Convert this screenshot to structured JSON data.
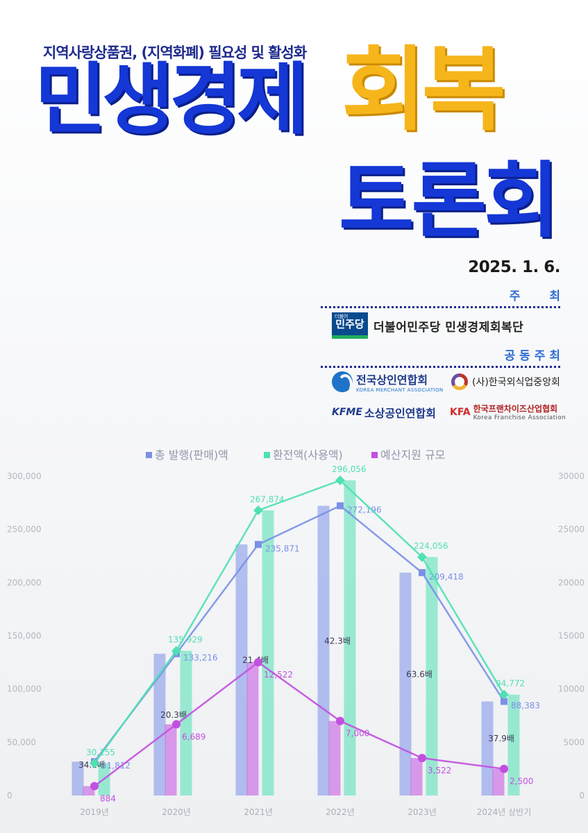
{
  "header": {
    "subtitle": "지역사랑상품권, (지역화폐) 필요성 및 활성화",
    "title_main": "민생경제",
    "title_accent": "회복",
    "title_sub": "토론회",
    "date": "2025. 1. 6."
  },
  "host": {
    "label": "주 최",
    "party_logo_text": "민주당",
    "party_logo_small": "더불어",
    "name": "더불어민주당 민생경제회복단"
  },
  "cohosts": {
    "label": "공동주최",
    "org1_name": "전국상인연합회",
    "org1_en": "KOREA MERCHANT ASSOCIATION",
    "org2_name": "(사)한국외식업중앙회",
    "org3_abbr": "KFME",
    "org3_name": "소상공인연합회",
    "org4_abbr": "KFA",
    "org4_name": "한국프랜차이즈산업협회",
    "org4_en": "Korea Franchise Association"
  },
  "colors": {
    "title_blue": "#1437d6",
    "title_yellow": "#f6b51a",
    "issued": "#7a90e8",
    "redeemed": "#4fe0b4",
    "budget": "#c24fe0"
  },
  "chart_data": {
    "type": "bar",
    "categories": [
      "2019년",
      "2020년",
      "2021년",
      "2022년",
      "2023년",
      "2024년 상반기"
    ],
    "series": [
      {
        "name": "총 발행(판매)액",
        "kind": "bar+line",
        "axis": "left",
        "values": [
          31812,
          133216,
          235871,
          272196,
          209418,
          88383
        ],
        "labels": [
          "31,812",
          "133,216",
          "235,871",
          "272,196",
          "209,418",
          "88,383"
        ]
      },
      {
        "name": "환전액(사용액)",
        "kind": "bar+line",
        "axis": "left",
        "values": [
          30155,
          135929,
          267874,
          296056,
          224056,
          94772
        ],
        "labels": [
          "30,155",
          "135,929",
          "267,874",
          "296,056",
          "224,056",
          "94,772"
        ]
      },
      {
        "name": "예산지원 규모",
        "kind": "bar+line",
        "axis": "right",
        "values": [
          884,
          6689,
          12522,
          7000,
          3522,
          2500
        ],
        "labels": [
          "884",
          "6,689",
          "12,522",
          "7,000",
          "3,522",
          "2,500"
        ]
      }
    ],
    "multipliers": [
      "34.1배",
      "20.3배",
      "21.4배",
      "42.3배",
      "63.6배",
      "37.9배"
    ],
    "y_left": {
      "min": 0,
      "max": 300000,
      "ticks": [
        "0",
        "50,000",
        "100,000",
        "150,000",
        "200,000",
        "250,000",
        "300,000"
      ]
    },
    "y_right": {
      "min": 0,
      "max": 30000,
      "ticks": [
        "0",
        "5000",
        "10000",
        "15000",
        "20000",
        "25000",
        "30000"
      ]
    },
    "legend_position": "top",
    "grid": false
  }
}
